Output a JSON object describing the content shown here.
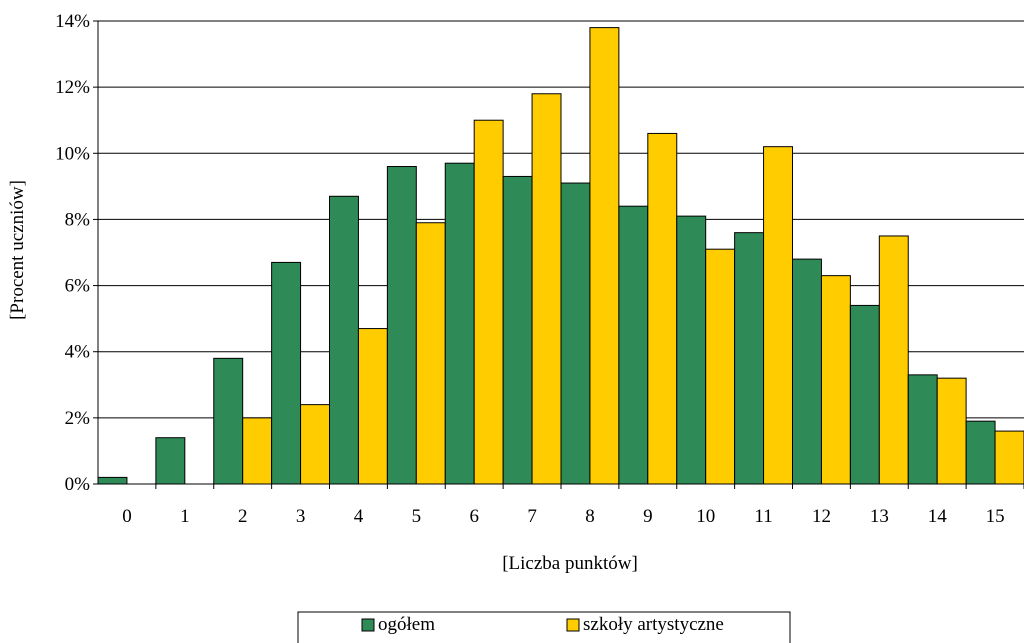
{
  "chart_data": {
    "type": "bar",
    "categories": [
      "0",
      "1",
      "2",
      "3",
      "4",
      "5",
      "6",
      "7",
      "8",
      "9",
      "10",
      "11",
      "12",
      "13",
      "14",
      "15"
    ],
    "series": [
      {
        "name": "ogółem",
        "color": "#2e8b57",
        "values": [
          0.2,
          1.4,
          3.8,
          6.7,
          8.7,
          9.6,
          9.7,
          9.3,
          9.1,
          8.4,
          8.1,
          7.6,
          6.8,
          5.4,
          3.3,
          1.9
        ]
      },
      {
        "name": "szkoły artystyczne",
        "color": "#ffcc00",
        "values": [
          0.0,
          0.0,
          2.0,
          2.4,
          4.7,
          7.9,
          11.0,
          11.8,
          13.8,
          10.6,
          7.1,
          10.2,
          6.3,
          7.5,
          3.2,
          1.6
        ]
      }
    ],
    "ylim": [
      0,
      14
    ],
    "yticks": [
      "0%",
      "2%",
      "4%",
      "6%",
      "8%",
      "10%",
      "12%",
      "14%"
    ],
    "xlabel": "[Liczba punktów]",
    "ylabel": "[Procent uczniów]",
    "grid": true,
    "legend_position": "bottom"
  }
}
